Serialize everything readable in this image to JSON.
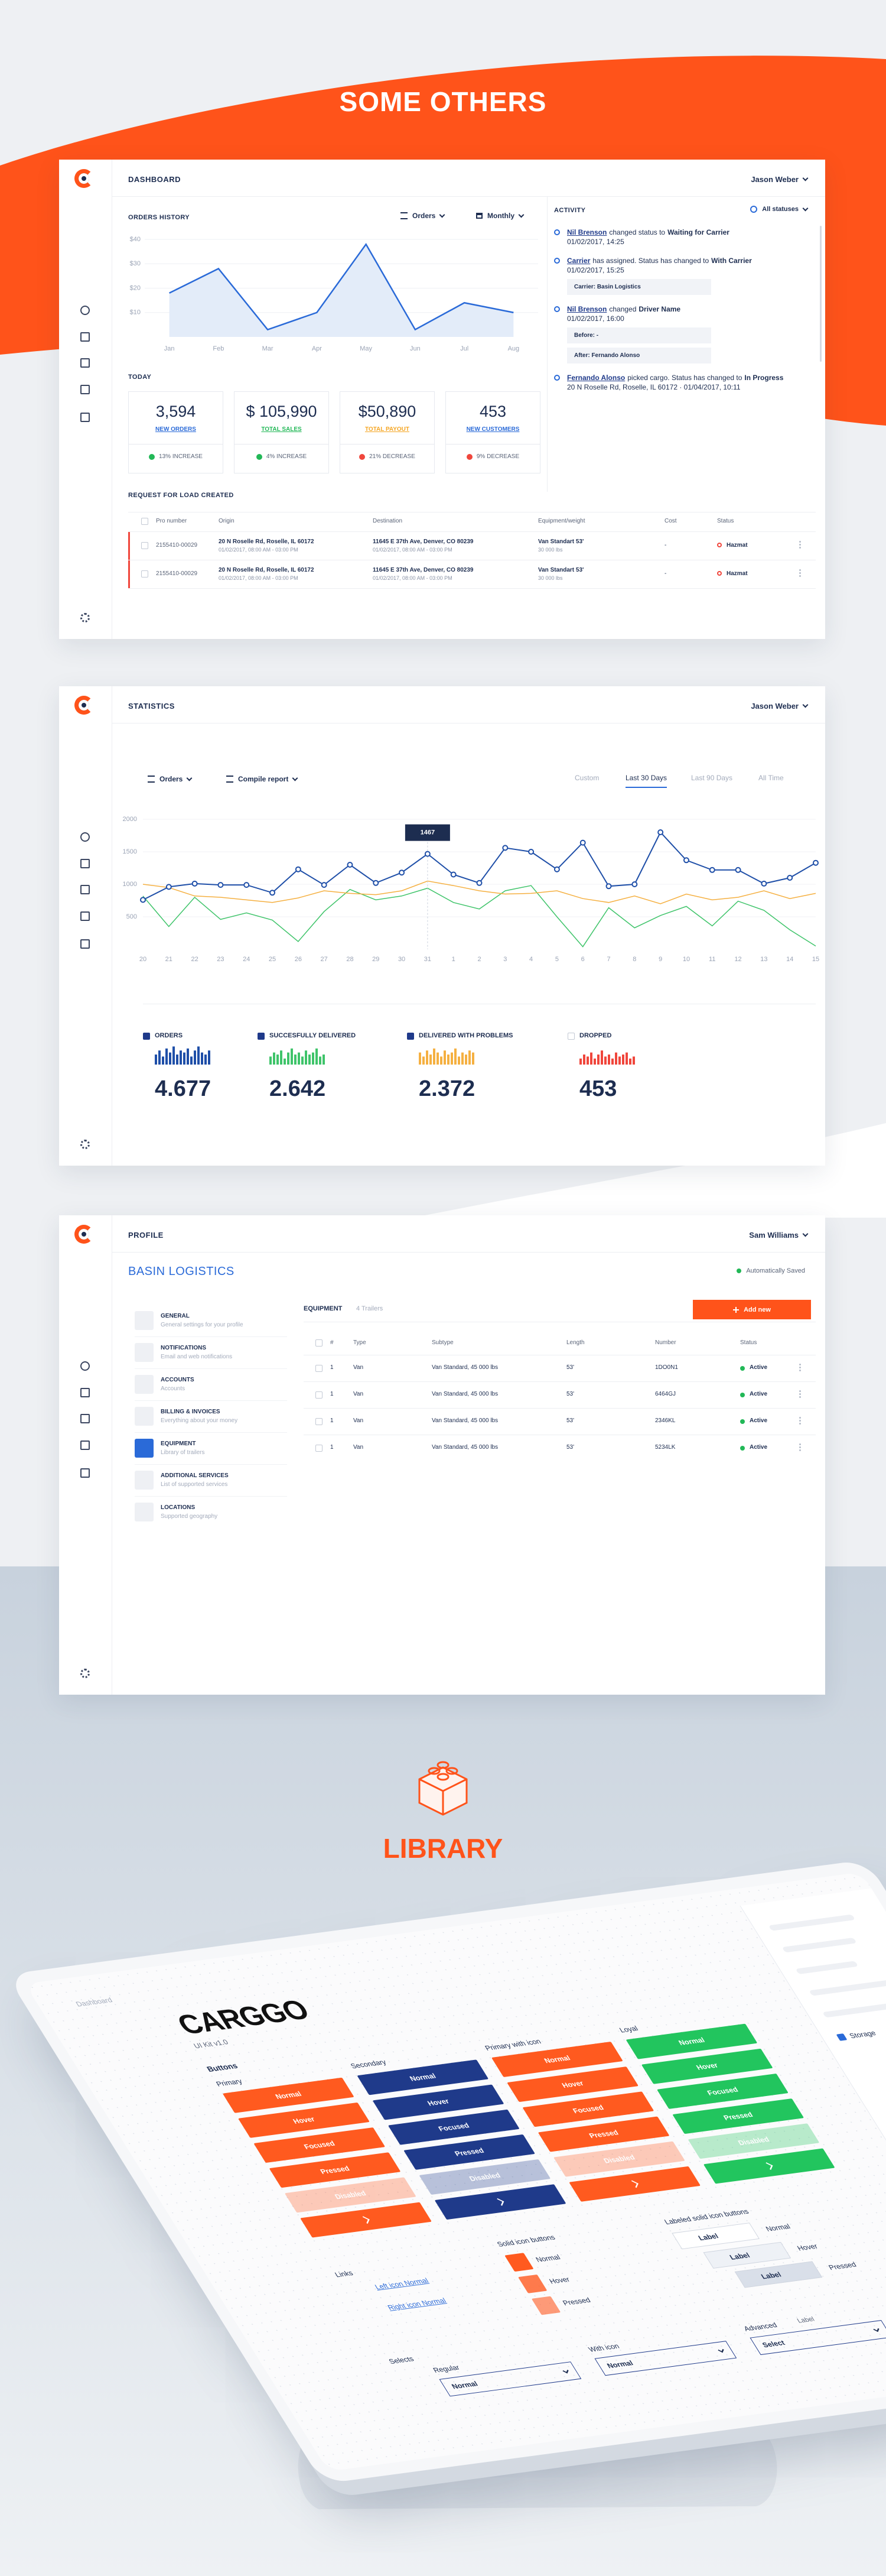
{
  "header": {
    "title": "SOME OTHERS"
  },
  "dashboard": {
    "section": "DASHBOARD",
    "user": "Jason Weber",
    "orders_history": {
      "title": "ORDERS HISTORY",
      "filter1": "Orders",
      "filter2": "Monthly",
      "categories": [
        "Jan",
        "Feb",
        "Mar",
        "Apr",
        "May",
        "Jun",
        "Jul",
        "Aug"
      ],
      "values": [
        18,
        28,
        3,
        10,
        38,
        3,
        14,
        10
      ],
      "ylim": [
        0,
        40
      ],
      "yticks": [
        {
          "value": 10,
          "label": "$10"
        },
        {
          "value": 20,
          "label": "$20"
        },
        {
          "value": 30,
          "label": "$30"
        },
        {
          "value": 40,
          "label": "$40"
        }
      ],
      "color": "#2a6ad8"
    },
    "today": {
      "title": "TODAY",
      "cards": [
        {
          "value": "3,594",
          "label": "NEW ORDERS",
          "change": "13% INCREASE",
          "trend": "up",
          "color": "#2a6ad8"
        },
        {
          "value": "$ 105,990",
          "label": "TOTAL SALES",
          "change": "4% INCREASE",
          "trend": "up",
          "color": "#22b857"
        },
        {
          "value": "$50,890",
          "label": "TOTAL PAYOUT",
          "change": "21% DECREASE",
          "trend": "down",
          "color": "#f5a623"
        },
        {
          "value": "453",
          "label": "NEW CUSTOMERS",
          "change": "9% DECREASE",
          "trend": "down",
          "color": "#2a6ad8"
        }
      ]
    },
    "requests": {
      "title": "REQUEST FOR LOAD CREATED",
      "columns": [
        "Pro number",
        "Origin",
        "Destination",
        "Equipment/weight",
        "Cost",
        "Status"
      ],
      "rows": [
        {
          "pro": "2155410-00029",
          "origin": "20 N Roselle Rd, Roselle, IL 60172",
          "origin_time": "01/02/2017, 08:00 AM - 03:00 PM",
          "destination": "11645 E 37th Ave, Denver, CO 80239",
          "destination_time": "01/02/2017, 08:00 AM - 03:00 PM",
          "equipment": "Van Standart 53'",
          "weight": "30 000 lbs",
          "cost": "-",
          "status": "Hazmat"
        },
        {
          "pro": "2155410-00029",
          "origin": "20 N Roselle Rd, Roselle, IL 60172",
          "origin_time": "01/02/2017, 08:00 AM - 03:00 PM",
          "destination": "11645 E 37th Ave, Denver, CO 80239",
          "destination_time": "01/02/2017, 08:00 AM - 03:00 PM",
          "equipment": "Van Standart 53'",
          "weight": "30 000 lbs",
          "cost": "-",
          "status": "Hazmat"
        }
      ]
    },
    "activity": {
      "title": "ACTIVITY",
      "filter": "All statuses",
      "items": [
        {
          "parts": [
            "Nil Brenson",
            "changed status to",
            "Waiting for Carrier"
          ],
          "time": "01/02/2017, 14:25"
        },
        {
          "parts": [
            "Carrier",
            "has assigned. Status has changed to",
            "With Carrier"
          ],
          "time": "01/02/2017, 15:25",
          "notes": [
            "Carrier: Basin Logistics"
          ]
        },
        {
          "parts": [
            "Nil Brenson",
            "changed",
            "Driver Name"
          ],
          "time": "01/02/2017, 16:00",
          "notes": [
            "Before: -",
            "After: Fernando Alonso"
          ]
        },
        {
          "parts": [
            "Fernando Alonso",
            "picked cargo. Status has changed to",
            "In Progress"
          ],
          "time": "20 N Roselle Rd, Roselle, IL 60172 · 01/04/2017, 10:11"
        }
      ]
    }
  },
  "statistics": {
    "section": "STATISTICS",
    "user": "Jason Weber",
    "filter1": "Orders",
    "filter2": "Compile report",
    "tabs": [
      "Custom",
      "Last 30 Days",
      "Last 90 Days",
      "All Time"
    ],
    "active_tab": 1,
    "chart": {
      "categories": [
        "20",
        "21",
        "22",
        "23",
        "24",
        "25",
        "26",
        "27",
        "28",
        "29",
        "30",
        "31",
        "1",
        "2",
        "3",
        "4",
        "5",
        "6",
        "7",
        "8",
        "9",
        "10",
        "11",
        "12",
        "13",
        "14",
        "15"
      ],
      "ylim": [
        0,
        2000
      ],
      "yticks": [
        500,
        1000,
        1500,
        2000
      ],
      "highlight": 11
    },
    "series": [
      {
        "name": "ORDERS",
        "color": "#1f4fa8",
        "checked": true,
        "total": "4.677",
        "values": [
          760,
          960,
          1010,
          990,
          990,
          870,
          1230,
          990,
          1300,
          1020,
          1180,
          1467,
          1150,
          1020,
          1560,
          1500,
          1230,
          1640,
          970,
          1000,
          1800,
          1370,
          1220,
          1220,
          1010,
          1100,
          1330
        ],
        "bars": [
          5,
          7,
          4,
          8,
          6,
          9,
          5,
          7,
          6,
          8,
          4,
          7,
          9,
          6,
          5,
          7
        ]
      },
      {
        "name": "SUCCESFULLY DELIVERED",
        "color": "#3fc46a",
        "checked": true,
        "total": "2.642",
        "values": [
          820,
          350,
          800,
          460,
          560,
          450,
          120,
          580,
          920,
          760,
          820,
          940,
          720,
          620,
          900,
          980,
          500,
          40,
          640,
          330,
          520,
          660,
          360,
          740,
          600,
          300,
          50
        ],
        "bars": [
          4,
          6,
          5,
          7,
          3,
          6,
          8,
          5,
          6,
          4,
          7,
          5,
          6,
          8,
          4,
          5
        ]
      },
      {
        "name": "DELIVERED WITH PROBLEMS",
        "color": "#f5b041",
        "checked": true,
        "total": "2.372",
        "values": [
          1000,
          950,
          820,
          800,
          760,
          720,
          790,
          900,
          860,
          840,
          900,
          1050,
          980,
          900,
          850,
          860,
          900,
          780,
          720,
          820,
          700,
          850,
          760,
          800,
          900,
          780,
          860
        ],
        "bars": [
          6,
          4,
          7,
          5,
          8,
          6,
          4,
          7,
          5,
          6,
          8,
          4,
          6,
          5,
          7,
          6
        ]
      },
      {
        "name": "DROPPED",
        "color": "#f0463c",
        "checked": false,
        "total": "453",
        "bars": [
          3,
          5,
          4,
          6,
          3,
          5,
          7,
          4,
          5,
          3,
          6,
          4,
          5,
          6,
          3,
          4
        ]
      }
    ]
  },
  "profile": {
    "section": "PROFILE",
    "user": "Sam Williams",
    "company": "BASIN LOGISTICS",
    "saved": "Automatically Saved",
    "menu": [
      {
        "title": "GENERAL",
        "desc": "General settings for your profile"
      },
      {
        "title": "NOTIFICATIONS",
        "desc": "Email and web notifications"
      },
      {
        "title": "ACCOUNTS",
        "desc": "Accounts"
      },
      {
        "title": "BILLING & INVOICES",
        "desc": "Everything about your money"
      },
      {
        "title": "EQUIPMENT",
        "desc": "Library of trailers"
      },
      {
        "title": "ADDITIONAL SERVICES",
        "desc": "List of supported services"
      },
      {
        "title": "LOCATIONS",
        "desc": "Supported geography"
      }
    ],
    "active_menu": 4,
    "tab": "EQUIPMENT",
    "count": "4 Trailers",
    "button": "Add new",
    "columns": [
      "#",
      "Type",
      "Subtype",
      "Length",
      "Number",
      "Status"
    ],
    "rows": [
      [
        "1",
        "Van",
        "Van Standard, 45 000 lbs",
        "53'",
        "1DO0N1",
        "Active"
      ],
      [
        "1",
        "Van",
        "Van Standard, 45 000 lbs",
        "53'",
        "6464GJ",
        "Active"
      ],
      [
        "1",
        "Van",
        "Van Standard, 45 000 lbs",
        "53'",
        "2346KL",
        "Active"
      ],
      [
        "1",
        "Van",
        "Van Standard, 45 000 lbs",
        "53'",
        "5234LK",
        "Active"
      ]
    ]
  },
  "library": {
    "title": "LIBRARY",
    "kit": {
      "nav": "Dashboard",
      "logo": "CARGGO",
      "version": "UI Kit v1.0",
      "buttons_title": "Buttons",
      "groups": [
        {
          "title": "Primary",
          "color": "#ff5a1f",
          "states": [
            "Normal",
            "Hover",
            "Focused",
            "Pressed",
            "Disabled"
          ]
        },
        {
          "title": "Secondary",
          "color": "#1f3a8a",
          "states": [
            "Normal",
            "Hover",
            "Focused",
            "Pressed",
            "Disabled"
          ]
        },
        {
          "title": "Primary with icon",
          "color": "#ff5a1f",
          "states": [
            "Normal",
            "Hover",
            "Focused",
            "Pressed",
            "Disabled"
          ]
        },
        {
          "title": "Loyal",
          "color": "#22c55e",
          "states": [
            "Normal",
            "Hover",
            "Focused",
            "Pressed",
            "Disabled"
          ]
        }
      ],
      "links": {
        "title": "Links",
        "items": [
          "Left icon Normal",
          "Right icon Normal"
        ]
      },
      "solid": {
        "title": "Solid icon buttons",
        "states": [
          "Normal",
          "Hover",
          "Pressed"
        ]
      },
      "labeled": {
        "title": "Labeled solid icon buttons",
        "label": "Label",
        "states": [
          "Normal",
          "Hover",
          "Pressed"
        ]
      },
      "selects": {
        "title": "Selects",
        "groups": [
          {
            "title": "Regular",
            "value": "Normal"
          },
          {
            "title": "With icon",
            "value": "Normal"
          },
          {
            "title": "Advanced",
            "label": "Label",
            "value": "Select"
          }
        ]
      },
      "panel": {
        "item": "Storage"
      }
    }
  }
}
